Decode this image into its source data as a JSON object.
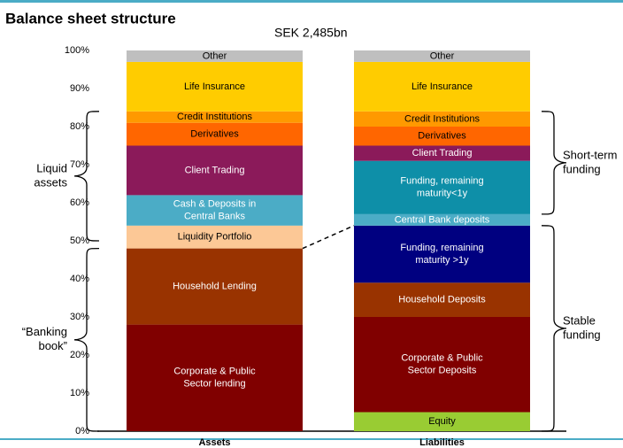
{
  "chart_data": {
    "type": "stacked_bar",
    "title": "Balance sheet structure",
    "subtitle": "SEK 2,485bn",
    "ylim": [
      0,
      100
    ],
    "yticks": [
      {
        "value": 0,
        "label": "0%"
      },
      {
        "value": 10,
        "label": "10%"
      },
      {
        "value": 20,
        "label": "20%"
      },
      {
        "value": 30,
        "label": "30%"
      },
      {
        "value": 40,
        "label": "40%"
      },
      {
        "value": 50,
        "label": "50%"
      },
      {
        "value": 60,
        "label": "60%"
      },
      {
        "value": 70,
        "label": "70%"
      },
      {
        "value": 80,
        "label": "80%"
      },
      {
        "value": 90,
        "label": "90%"
      },
      {
        "value": 100,
        "label": "100%"
      }
    ],
    "bars": [
      {
        "name": "Assets",
        "segments": [
          {
            "label": [
              "Corporate & Public",
              "Sector lending"
            ],
            "value": 28,
            "color": "#800000",
            "text_color": "#ffffff"
          },
          {
            "label": [
              "Household Lending"
            ],
            "value": 20,
            "color": "#993300",
            "text_color": "#ffffff"
          },
          {
            "label": [
              "Liquidity Portfolio"
            ],
            "value": 6,
            "color": "#fcc896",
            "text_color": "#000000"
          },
          {
            "label": [
              "Cash & Deposits in",
              "Central Banks"
            ],
            "value": 8,
            "color": "#4bacc6",
            "text_color": "#ffffff"
          },
          {
            "label": [
              "Client Trading"
            ],
            "value": 13,
            "color": "#8b1a5a",
            "text_color": "#ffffff"
          },
          {
            "label": [
              "Derivatives"
            ],
            "value": 6,
            "color": "#ff6600",
            "text_color": "#000000"
          },
          {
            "label": [
              "Credit Institutions"
            ],
            "value": 3,
            "color": "#ff9900",
            "text_color": "#000000"
          },
          {
            "label": [
              "Life Insurance"
            ],
            "value": 13,
            "color": "#ffcc00",
            "text_color": "#000000"
          },
          {
            "label": [
              "Other"
            ],
            "value": 3,
            "color": "#bfbfbf",
            "text_color": "#000000"
          }
        ]
      },
      {
        "name": "Liabilities",
        "segments": [
          {
            "label": [
              "Equity"
            ],
            "value": 5,
            "color": "#99cc33",
            "text_color": "#000000"
          },
          {
            "label": [
              "Corporate & Public",
              "Sector Deposits"
            ],
            "value": 25,
            "color": "#800000",
            "text_color": "#ffffff"
          },
          {
            "label": [
              "Household Deposits"
            ],
            "value": 9,
            "color": "#993300",
            "text_color": "#ffffff"
          },
          {
            "label": [
              "Funding, remaining",
              "maturity >1y"
            ],
            "value": 15,
            "color": "#000080",
            "text_color": "#ffffff"
          },
          {
            "label": [
              "Central Bank deposits"
            ],
            "value": 3,
            "color": "#4bacc6",
            "text_color": "#ffffff"
          },
          {
            "label": [
              "Funding, remaining",
              "maturity<1y"
            ],
            "value": 14,
            "color": "#0e8fa8",
            "text_color": "#ffffff"
          },
          {
            "label": [
              "Client Trading"
            ],
            "value": 4,
            "color": "#8b1a5a",
            "text_color": "#ffffff"
          },
          {
            "label": [
              "Derivatives"
            ],
            "value": 5,
            "color": "#ff6600",
            "text_color": "#000000"
          },
          {
            "label": [
              "Credit Institutions"
            ],
            "value": 4,
            "color": "#ff9900",
            "text_color": "#000000"
          },
          {
            "label": [
              "Life Insurance"
            ],
            "value": 13,
            "color": "#ffcc00",
            "text_color": "#000000"
          },
          {
            "label": [
              "Other"
            ],
            "value": 3,
            "color": "#bfbfbf",
            "text_color": "#000000"
          }
        ]
      }
    ],
    "annotations": [
      {
        "text": [
          "Liquid",
          "assets"
        ],
        "range": [
          50,
          84
        ],
        "side": "left"
      },
      {
        "text": [
          "“Banking",
          "book”"
        ],
        "range": [
          0,
          48
        ],
        "side": "left"
      },
      {
        "text": [
          "Short-term",
          "funding"
        ],
        "range": [
          57,
          84
        ],
        "side": "right"
      },
      {
        "text": [
          "Stable",
          "funding"
        ],
        "range": [
          0,
          54
        ],
        "side": "right"
      }
    ]
  }
}
